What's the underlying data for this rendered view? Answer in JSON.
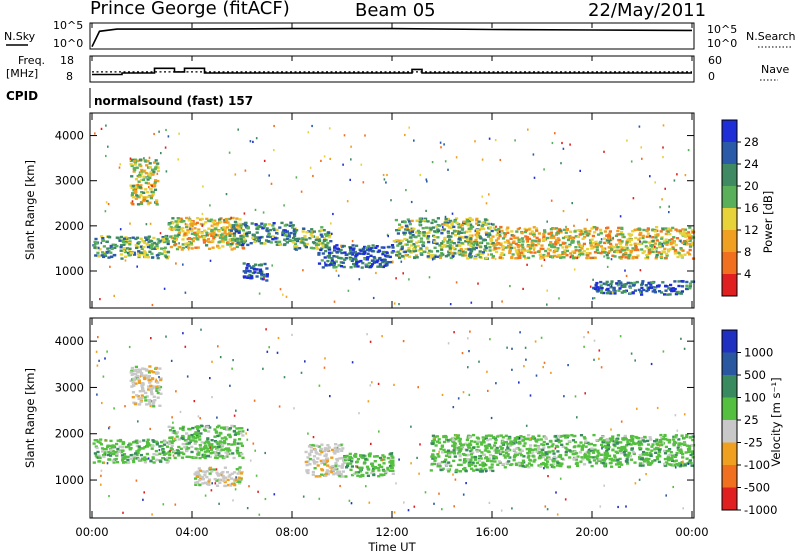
{
  "header": {
    "station": "Prince George (fitACF)",
    "beam": "Beam 05",
    "date": "22/May/2011"
  },
  "noise_panel": {
    "left_label": "N.Sky",
    "right_label": "N.Search",
    "left_ticks": [
      "10^5",
      "10^0"
    ],
    "right_ticks": [
      "10^5",
      "10^0"
    ]
  },
  "freq_panel": {
    "left_label_line1": "Freq.",
    "left_label_line2": "[MHz]",
    "right_label": "Nave",
    "left_ticks": [
      "18",
      "8"
    ],
    "right_ticks": [
      "60",
      "0"
    ]
  },
  "cpid_panel": {
    "label": "CPID",
    "value": "normalsound (fast) 157"
  },
  "power_panel": {
    "ylabel": "Slant Range [km]",
    "yticks": [
      "4000",
      "3000",
      "2000",
      "1000"
    ],
    "colorbar_label": "Power [dB]",
    "colorbar_ticks": [
      "28",
      "24",
      "20",
      "16",
      "12",
      "8",
      "4"
    ],
    "colors": [
      "#1f2fd8",
      "#2a5aa8",
      "#3f8a62",
      "#5ab05a",
      "#e8d23a",
      "#f0a020",
      "#f07020",
      "#e02020"
    ]
  },
  "velocity_panel": {
    "ylabel": "Slant Range [km]",
    "yticks": [
      "4000",
      "3000",
      "2000",
      "1000"
    ],
    "colorbar_label": "Velocity [m s⁻¹]",
    "colorbar_ticks": [
      "1000",
      "500",
      "100",
      "25",
      "-25",
      "-100",
      "-500",
      "-1000"
    ],
    "colors": [
      "#2030c0",
      "#2a58a0",
      "#3a8a60",
      "#55c040",
      "#c8c8c8",
      "#f0a020",
      "#f07020",
      "#e02020"
    ]
  },
  "xaxis": {
    "label": "Time UT",
    "ticks": [
      "00:00",
      "04:00",
      "08:00",
      "12:00",
      "16:00",
      "20:00",
      "00:00"
    ]
  },
  "chart_data": [
    {
      "type": "line",
      "name": "N.Sky / N.Search",
      "x_hours": [
        0,
        0.3,
        1,
        4,
        8,
        12,
        16,
        20,
        23.8,
        24
      ],
      "nsky_log": [
        0.3,
        3.8,
        4.3,
        4.3,
        4.4,
        4.4,
        4.2,
        4.1,
        4.0,
        4.0
      ]
    },
    {
      "type": "line",
      "name": "Freq / Nave",
      "freq_segments": [
        {
          "start": 0,
          "end": 1.2,
          "mhz": 10.5
        },
        {
          "start": 1.2,
          "end": 2.5,
          "mhz": 11.2
        },
        {
          "start": 2.5,
          "end": 3.3,
          "mhz": 13.3
        },
        {
          "start": 3.3,
          "end": 3.7,
          "mhz": 11.7
        },
        {
          "start": 3.7,
          "end": 4.5,
          "mhz": 13.3
        },
        {
          "start": 4.5,
          "end": 12.8,
          "mhz": 11.2
        },
        {
          "start": 12.8,
          "end": 13.2,
          "mhz": 12.8
        },
        {
          "start": 13.2,
          "end": 24,
          "mhz": 11.2
        }
      ],
      "nave_level": 22
    },
    {
      "type": "heatmap",
      "name": "Power [dB]",
      "x_hours": [
        0,
        24
      ],
      "y_km": [
        180,
        4500
      ],
      "clim": [
        0,
        30
      ],
      "features": [
        {
          "t": [
            0.0,
            3.0
          ],
          "r": [
            1300,
            1800
          ],
          "v": 19
        },
        {
          "t": [
            1.5,
            2.6
          ],
          "r": [
            2500,
            3500
          ],
          "v": 14
        },
        {
          "t": [
            3.0,
            6.0
          ],
          "r": [
            1500,
            2200
          ],
          "v": 13
        },
        {
          "t": [
            5.5,
            8.0
          ],
          "r": [
            1600,
            2100
          ],
          "v": 21
        },
        {
          "t": [
            6.0,
            7.0
          ],
          "r": [
            800,
            1200
          ],
          "v": 26
        },
        {
          "t": [
            8.0,
            9.5
          ],
          "r": [
            1500,
            2000
          ],
          "v": 19
        },
        {
          "t": [
            9.0,
            12.0
          ],
          "r": [
            1100,
            1600
          ],
          "v": 24
        },
        {
          "t": [
            12.0,
            16.0
          ],
          "r": [
            1300,
            2200
          ],
          "v": 17
        },
        {
          "t": [
            16.0,
            24.0
          ],
          "r": [
            1300,
            2000
          ],
          "v": 12
        },
        {
          "t": [
            20.0,
            24.0
          ],
          "r": [
            500,
            800
          ],
          "v": 24
        }
      ]
    },
    {
      "type": "heatmap",
      "name": "Velocity [m s-1]",
      "x_hours": [
        0,
        24
      ],
      "y_km": [
        180,
        4500
      ],
      "clim": [
        -1000,
        1000
      ],
      "features": [
        {
          "t": [
            0.0,
            3.0
          ],
          "r": [
            1400,
            1900
          ],
          "v": 0
        },
        {
          "t": [
            1.5,
            2.7
          ],
          "r": [
            2600,
            3500
          ],
          "v": -200
        },
        {
          "t": [
            3.0,
            6.0
          ],
          "r": [
            1500,
            2200
          ],
          "v": 0
        },
        {
          "t": [
            4.0,
            6.0
          ],
          "r": [
            900,
            1300
          ],
          "v": -200
        },
        {
          "t": [
            8.5,
            10.0
          ],
          "r": [
            1100,
            1800
          ],
          "v": -200
        },
        {
          "t": [
            10.0,
            12.0
          ],
          "r": [
            1100,
            1600
          ],
          "v": 150
        },
        {
          "t": [
            13.5,
            16.0
          ],
          "r": [
            1200,
            2000
          ],
          "v": 80
        },
        {
          "t": [
            16.0,
            24.0
          ],
          "r": [
            1300,
            2000
          ],
          "v": 0
        }
      ]
    }
  ]
}
